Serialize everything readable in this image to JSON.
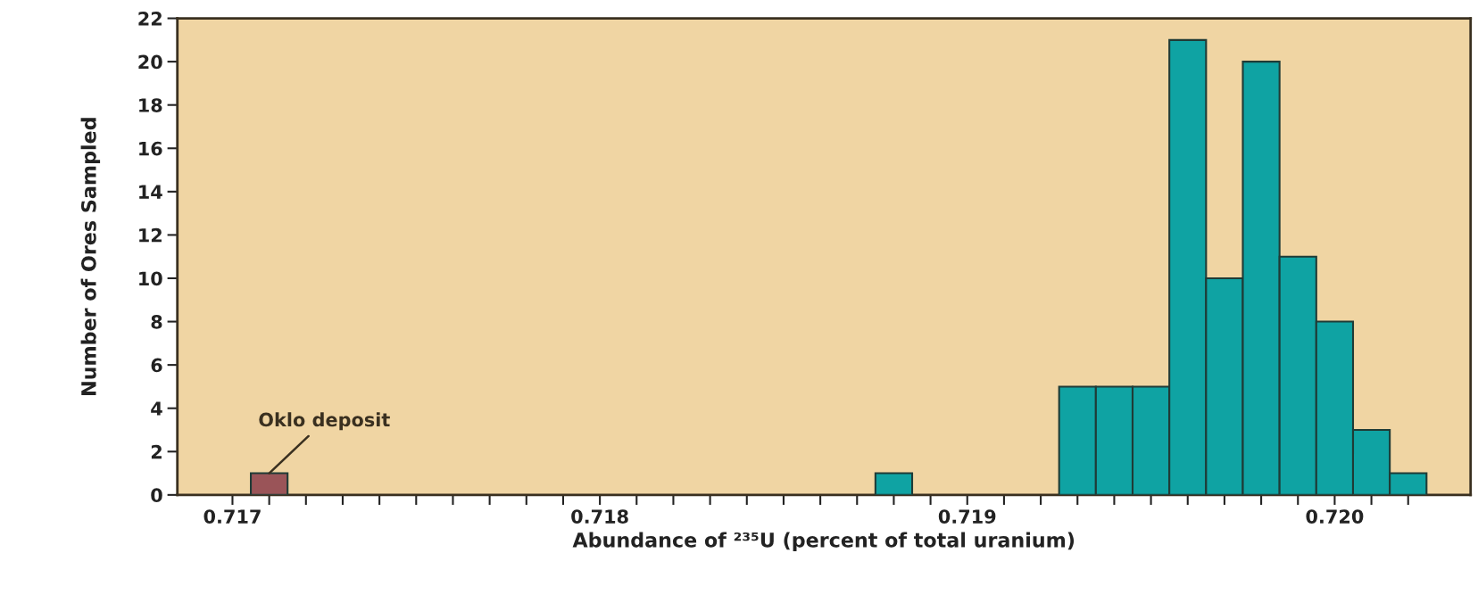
{
  "chart_data": {
    "type": "histogram",
    "xlabel": "Abundance of ²³⁵U (percent of total uranium)",
    "ylabel": "Number of Ores Sampled",
    "bins": [
      0.71705,
      0.71715,
      0.71725,
      0.71735,
      0.71745,
      0.71755,
      0.71765,
      0.71775,
      0.71785,
      0.71795,
      0.71805,
      0.71815,
      0.71825,
      0.71835,
      0.71845,
      0.71855,
      0.71865,
      0.71875,
      0.71885,
      0.71895,
      0.71905,
      0.71915,
      0.71925,
      0.71935,
      0.71945,
      0.71955,
      0.71965,
      0.71975,
      0.71985,
      0.71995,
      0.72005,
      0.72015,
      0.72025
    ],
    "values": [
      1,
      0,
      0,
      0,
      0,
      0,
      0,
      0,
      0,
      0,
      0,
      0,
      0,
      0,
      0,
      0,
      0,
      1,
      0,
      0,
      0,
      0,
      5,
      5,
      5,
      21,
      10,
      20,
      11,
      8,
      3,
      1
    ],
    "colors": [
      "#9a5458",
      "#0fa3a3",
      "#0fa3a3",
      "#0fa3a3",
      "#0fa3a3",
      "#0fa3a3",
      "#0fa3a3",
      "#0fa3a3",
      "#0fa3a3",
      "#0fa3a3",
      "#0fa3a3",
      "#0fa3a3",
      "#0fa3a3",
      "#0fa3a3",
      "#0fa3a3",
      "#0fa3a3",
      "#0fa3a3",
      "#0fa3a3",
      "#0fa3a3",
      "#0fa3a3",
      "#0fa3a3",
      "#0fa3a3",
      "#0fa3a3",
      "#0fa3a3",
      "#0fa3a3",
      "#0fa3a3",
      "#0fa3a3",
      "#0fa3a3",
      "#0fa3a3",
      "#0fa3a3",
      "#0fa3a3",
      "#0fa3a3"
    ],
    "annotations": [
      {
        "text": "Oklo deposit",
        "x": 0.7171,
        "y": 1
      }
    ],
    "xlim": [
      0.71685,
      0.72037
    ],
    "ylim": [
      0,
      22
    ],
    "yticks": [
      0,
      2,
      4,
      6,
      8,
      10,
      12,
      14,
      16,
      18,
      20,
      22
    ],
    "xticks": [
      {
        "value": 0.717,
        "label": "0.717"
      },
      {
        "value": 0.7171,
        "label": null
      },
      {
        "value": 0.7172,
        "label": null
      },
      {
        "value": 0.7173,
        "label": null
      },
      {
        "value": 0.7174,
        "label": null
      },
      {
        "value": 0.7175,
        "label": null
      },
      {
        "value": 0.7176,
        "label": null
      },
      {
        "value": 0.7177,
        "label": null
      },
      {
        "value": 0.7178,
        "label": null
      },
      {
        "value": 0.7179,
        "label": null
      },
      {
        "value": 0.718,
        "label": "0.718"
      },
      {
        "value": 0.7181,
        "label": null
      },
      {
        "value": 0.7182,
        "label": null
      },
      {
        "value": 0.7183,
        "label": null
      },
      {
        "value": 0.7184,
        "label": null
      },
      {
        "value": 0.7185,
        "label": null
      },
      {
        "value": 0.7186,
        "label": null
      },
      {
        "value": 0.7187,
        "label": null
      },
      {
        "value": 0.7188,
        "label": null
      },
      {
        "value": 0.7189,
        "label": null
      },
      {
        "value": 0.719,
        "label": "0.719"
      },
      {
        "value": 0.7191,
        "label": null
      },
      {
        "value": 0.7192,
        "label": null
      },
      {
        "value": 0.7193,
        "label": null
      },
      {
        "value": 0.7194,
        "label": null
      },
      {
        "value": 0.7195,
        "label": null
      },
      {
        "value": 0.7196,
        "label": null
      },
      {
        "value": 0.7197,
        "label": null
      },
      {
        "value": 0.7198,
        "label": null
      },
      {
        "value": 0.7199,
        "label": null
      },
      {
        "value": 0.72,
        "label": "0.720"
      },
      {
        "value": 0.7201,
        "label": null
      },
      {
        "value": 0.7202,
        "label": null
      }
    ],
    "grid": false
  }
}
